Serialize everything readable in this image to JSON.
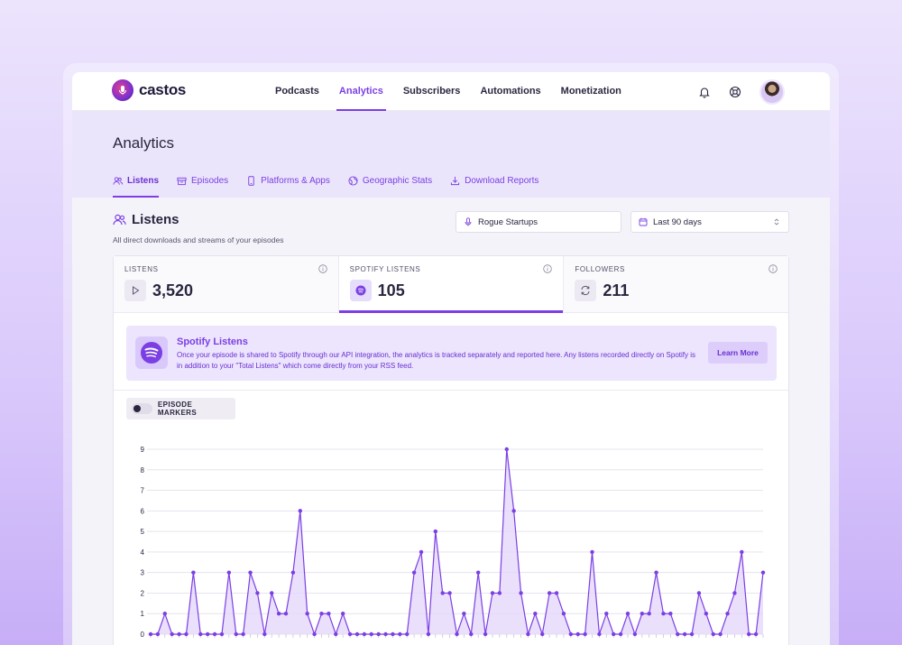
{
  "app": {
    "logo_text": "castos"
  },
  "nav": {
    "links": [
      {
        "label": "Podcasts",
        "active": false
      },
      {
        "label": "Analytics",
        "active": true
      },
      {
        "label": "Subscribers",
        "active": false
      },
      {
        "label": "Automations",
        "active": false
      },
      {
        "label": "Monetization",
        "active": false
      }
    ]
  },
  "page": {
    "title": "Analytics",
    "tabs": [
      {
        "label": "Listens",
        "icon": "users-icon",
        "active": true
      },
      {
        "label": "Episodes",
        "icon": "archive-icon",
        "active": false
      },
      {
        "label": "Platforms & Apps",
        "icon": "phone-icon",
        "active": false
      },
      {
        "label": "Geographic Stats",
        "icon": "globe-icon",
        "active": false
      },
      {
        "label": "Download Reports",
        "icon": "download-icon",
        "active": false
      }
    ]
  },
  "section": {
    "title": "Listens",
    "description": "All direct downloads and streams of your episodes",
    "podcast_select": "Rogue Startups",
    "range_select": "Last 90 days"
  },
  "stats": [
    {
      "label": "LISTENS",
      "value": "3,520",
      "icon": "play-icon",
      "active": false
    },
    {
      "label": "SPOTIFY LISTENS",
      "value": "105",
      "icon": "spotify-icon",
      "active": true
    },
    {
      "label": "FOLLOWERS",
      "value": "211",
      "icon": "refresh-icon",
      "active": false
    }
  ],
  "banner": {
    "title": "Spotify Listens",
    "text": "Once your episode is shared to Spotify through our API integration, the analytics is tracked separately and reported here. Any listens recorded directly on Spotify is in addition to your \"Total Listens\" which come directly from your RSS feed.",
    "button": "Learn More"
  },
  "toggle": {
    "label": "EPISODE MARKERS",
    "on": false
  },
  "colors": {
    "accent": "#7b3fe4",
    "fill": "#e3d6fb"
  },
  "chart_data": {
    "type": "area",
    "ylim": [
      0,
      9
    ],
    "yticks": [
      0,
      1,
      2,
      3,
      4,
      5,
      6,
      7,
      8,
      9
    ],
    "values": [
      0,
      0,
      1,
      0,
      0,
      0,
      3,
      0,
      0,
      0,
      0,
      3,
      0,
      0,
      3,
      2,
      0,
      2,
      1,
      1,
      3,
      6,
      1,
      0,
      1,
      1,
      0,
      1,
      0,
      0,
      0,
      0,
      0,
      0,
      0,
      0,
      0,
      3,
      4,
      0,
      5,
      2,
      2,
      0,
      1,
      0,
      3,
      0,
      2,
      2,
      9,
      6,
      2,
      0,
      1,
      0,
      2,
      2,
      1,
      0,
      0,
      0,
      4,
      0,
      1,
      0,
      0,
      1,
      0,
      1,
      1,
      3,
      1,
      1,
      0,
      0,
      0,
      2,
      1,
      0,
      0,
      1,
      2,
      4,
      0,
      0,
      3
    ]
  }
}
